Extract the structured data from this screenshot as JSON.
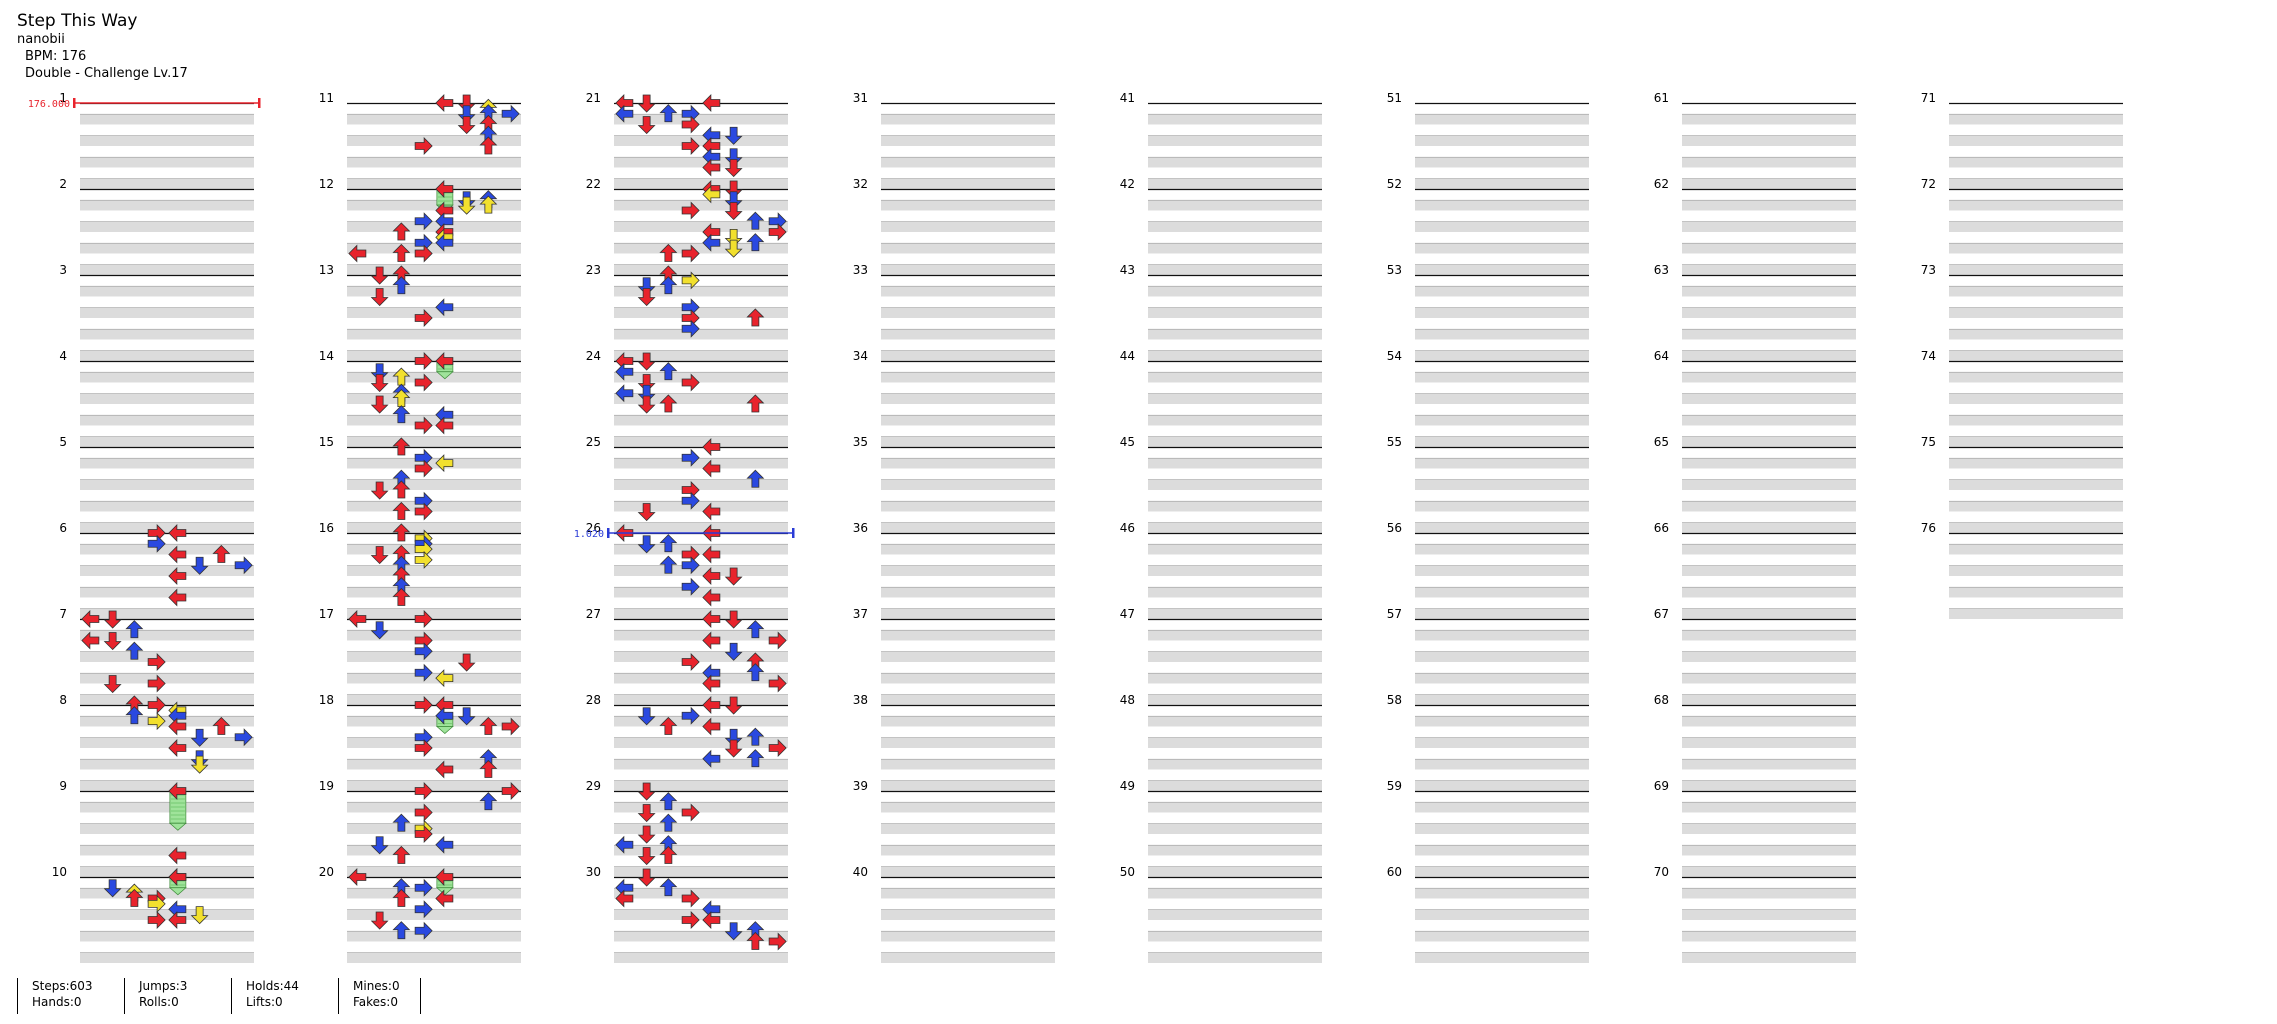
{
  "header": {
    "title": "Step This Way",
    "artist": "nanobii",
    "bpm": "BPM: 176",
    "difficulty": "Double - Challenge Lv.17"
  },
  "markers": {
    "bpm_change": {
      "label": "176.000",
      "measure": 1,
      "beat": 0,
      "color": "#e8232c"
    },
    "speed_change": {
      "label": "1.020",
      "measure": 26,
      "beat": 0,
      "color": "#2a3bd6"
    }
  },
  "measure_numbers": [
    "1",
    "2",
    "3",
    "4",
    "5",
    "6",
    "7",
    "8",
    "9",
    "10",
    "11",
    "12",
    "13",
    "14",
    "15",
    "16",
    "17",
    "18",
    "19",
    "20",
    "21",
    "22",
    "23",
    "24",
    "25",
    "26",
    "27",
    "28",
    "29",
    "30",
    "31",
    "32",
    "33",
    "34",
    "35",
    "36",
    "37",
    "38",
    "39",
    "40",
    "41",
    "42",
    "43",
    "44",
    "45",
    "46",
    "47",
    "48",
    "49",
    "50",
    "51",
    "52",
    "53",
    "54",
    "55",
    "56",
    "57",
    "58",
    "59",
    "60",
    "61",
    "62",
    "63",
    "64",
    "65",
    "66",
    "67",
    "68",
    "69",
    "70",
    "71",
    "72",
    "73",
    "74",
    "75",
    "76"
  ],
  "colors": {
    "quarter": "#e8232c",
    "eighth": "#2a49e0",
    "sixteenth": "#f2e02e",
    "hold_body": "#9fe39a",
    "stripe": "#dcdcdc"
  },
  "lanes": [
    "L1",
    "D1",
    "U1",
    "R1",
    "L2",
    "D2",
    "U2",
    "R2"
  ],
  "notes": [
    {
      "m": 6,
      "b": 0,
      "lane": 3
    },
    {
      "m": 6,
      "b": 0,
      "lane": 4
    },
    {
      "m": 6,
      "b": 0.5,
      "lane": 3
    },
    {
      "m": 6,
      "b": 1,
      "lane": 4
    },
    {
      "m": 6,
      "b": 1,
      "lane": 6
    },
    {
      "m": 6,
      "b": 1.5,
      "lane": 5
    },
    {
      "m": 6,
      "b": 1.5,
      "lane": 7
    },
    {
      "m": 6,
      "b": 2,
      "lane": 4
    },
    {
      "m": 6,
      "b": 3,
      "lane": 4
    },
    {
      "m": 7,
      "b": 0,
      "lane": 0
    },
    {
      "m": 7,
      "b": 0,
      "lane": 1
    },
    {
      "m": 7,
      "b": 0.5,
      "lane": 2
    },
    {
      "m": 7,
      "b": 1,
      "lane": 0
    },
    {
      "m": 7,
      "b": 1,
      "lane": 1
    },
    {
      "m": 7,
      "b": 1.5,
      "lane": 2
    },
    {
      "m": 7,
      "b": 2,
      "lane": 3
    },
    {
      "m": 7,
      "b": 3,
      "lane": 1
    },
    {
      "m": 7,
      "b": 3,
      "lane": 3
    },
    {
      "m": 8,
      "b": 0,
      "lane": 2
    },
    {
      "m": 8,
      "b": 0,
      "lane": 3
    },
    {
      "m": 8,
      "b": 0.25,
      "lane": 4
    },
    {
      "m": 8,
      "b": 0.5,
      "lane": 2
    },
    {
      "m": 8,
      "b": 0.5,
      "lane": 4
    },
    {
      "m": 8,
      "b": 0.75,
      "lane": 3
    },
    {
      "m": 8,
      "b": 1,
      "lane": 4
    },
    {
      "m": 8,
      "b": 1,
      "lane": 6
    },
    {
      "m": 8,
      "b": 1.5,
      "lane": 5
    },
    {
      "m": 8,
      "b": 1.5,
      "lane": 7
    },
    {
      "m": 8,
      "b": 2,
      "lane": 4
    },
    {
      "m": 8,
      "b": 2.5,
      "lane": 5
    },
    {
      "m": 8,
      "b": 2.75,
      "lane": 5
    },
    {
      "m": 9,
      "b": 0,
      "lane": 4,
      "hold": 1.5
    },
    {
      "m": 9,
      "b": 3,
      "lane": 4
    },
    {
      "m": 10,
      "b": 0,
      "lane": 4
    },
    {
      "m": 10,
      "b": 0,
      "lane": 4,
      "hold": 0.5
    },
    {
      "m": 10,
      "b": 0.5,
      "lane": 1
    },
    {
      "m": 10,
      "b": 0.75,
      "lane": 2
    },
    {
      "m": 10,
      "b": 1,
      "lane": 2
    },
    {
      "m": 10,
      "b": 1,
      "lane": 3
    },
    {
      "m": 10,
      "b": 1.25,
      "lane": 3
    },
    {
      "m": 10,
      "b": 1.5,
      "lane": 4
    },
    {
      "m": 10,
      "b": 1.75,
      "lane": 5
    },
    {
      "m": 10,
      "b": 2,
      "lane": 3
    },
    {
      "m": 10,
      "b": 2,
      "lane": 4
    },
    {
      "m": 11,
      "b": 0,
      "lane": 4
    },
    {
      "m": 11,
      "b": 0,
      "lane": 5
    },
    {
      "m": 11,
      "b": 0.25,
      "lane": 6
    },
    {
      "m": 11,
      "b": 0.5,
      "lane": 5
    },
    {
      "m": 11,
      "b": 0.5,
      "lane": 6
    },
    {
      "m": 11,
      "b": 0.5,
      "lane": 7
    },
    {
      "m": 11,
      "b": 1,
      "lane": 5
    },
    {
      "m": 11,
      "b": 1,
      "lane": 6
    },
    {
      "m": 11,
      "b": 1.5,
      "lane": 6
    },
    {
      "m": 11,
      "b": 2,
      "lane": 6
    },
    {
      "m": 11,
      "b": 2,
      "lane": 3
    },
    {
      "m": 12,
      "b": 0,
      "lane": 4,
      "hold": 0.75
    },
    {
      "m": 12,
      "b": 0.5,
      "lane": 5
    },
    {
      "m": 12,
      "b": 0.5,
      "lane": 6
    },
    {
      "m": 12,
      "b": 0.75,
      "lane": 5
    },
    {
      "m": 12,
      "b": 0.75,
      "lane": 6
    },
    {
      "m": 12,
      "b": 1,
      "lane": 4
    },
    {
      "m": 12,
      "b": 1.5,
      "lane": 3
    },
    {
      "m": 12,
      "b": 1.5,
      "lane": 4
    },
    {
      "m": 12,
      "b": 2,
      "lane": 2
    },
    {
      "m": 12,
      "b": 2,
      "lane": 4
    },
    {
      "m": 12,
      "b": 2.25,
      "lane": 4
    },
    {
      "m": 12,
      "b": 2.5,
      "lane": 3
    },
    {
      "m": 12,
      "b": 2.5,
      "lane": 4
    },
    {
      "m": 12,
      "b": 3,
      "lane": 0
    },
    {
      "m": 12,
      "b": 3,
      "lane": 2
    },
    {
      "m": 12,
      "b": 3,
      "lane": 3
    },
    {
      "m": 13,
      "b": 0,
      "lane": 1
    },
    {
      "m": 13,
      "b": 0,
      "lane": 2
    },
    {
      "m": 13,
      "b": 0.5,
      "lane": 2
    },
    {
      "m": 13,
      "b": 1,
      "lane": 1
    },
    {
      "m": 13,
      "b": 1.5,
      "lane": 4
    },
    {
      "m": 13,
      "b": 2,
      "lane": 3
    },
    {
      "m": 14,
      "b": 0,
      "lane": 3
    },
    {
      "m": 14,
      "b": 0,
      "lane": 4,
      "hold": 0.5
    },
    {
      "m": 14,
      "b": 0.5,
      "lane": 1
    },
    {
      "m": 14,
      "b": 0.75,
      "lane": 2
    },
    {
      "m": 14,
      "b": 1,
      "lane": 1
    },
    {
      "m": 14,
      "b": 1,
      "lane": 3
    },
    {
      "m": 14,
      "b": 1.5,
      "lane": 2
    },
    {
      "m": 14,
      "b": 1.75,
      "lane": 2
    },
    {
      "m": 14,
      "b": 2,
      "lane": 1
    },
    {
      "m": 14,
      "b": 2.5,
      "lane": 2
    },
    {
      "m": 14,
      "b": 2.5,
      "lane": 4
    },
    {
      "m": 14,
      "b": 3,
      "lane": 3
    },
    {
      "m": 14,
      "b": 3,
      "lane": 4
    },
    {
      "m": 15,
      "b": 0,
      "lane": 2
    },
    {
      "m": 15,
      "b": 0.5,
      "lane": 3
    },
    {
      "m": 15,
      "b": 0.75,
      "lane": 4
    },
    {
      "m": 15,
      "b": 1,
      "lane": 3
    },
    {
      "m": 15,
      "b": 1.5,
      "lane": 2
    },
    {
      "m": 15,
      "b": 2,
      "lane": 1
    },
    {
      "m": 15,
      "b": 2,
      "lane": 2
    },
    {
      "m": 15,
      "b": 2.5,
      "lane": 3
    },
    {
      "m": 15,
      "b": 3,
      "lane": 2
    },
    {
      "m": 15,
      "b": 3,
      "lane": 3
    },
    {
      "m": 16,
      "b": 0,
      "lane": 2
    },
    {
      "m": 16,
      "b": 0.25,
      "lane": 3
    },
    {
      "m": 16,
      "b": 0.5,
      "lane": 3
    },
    {
      "m": 16,
      "b": 0.75,
      "lane": 3
    },
    {
      "m": 16,
      "b": 1,
      "lane": 1
    },
    {
      "m": 16,
      "b": 1,
      "lane": 2
    },
    {
      "m": 16,
      "b": 1.25,
      "lane": 3
    },
    {
      "m": 16,
      "b": 1.5,
      "lane": 2
    },
    {
      "m": 16,
      "b": 2,
      "lane": 2
    },
    {
      "m": 16,
      "b": 2.5,
      "lane": 2
    },
    {
      "m": 16,
      "b": 3,
      "lane": 2
    },
    {
      "m": 17,
      "b": 0,
      "lane": 0
    },
    {
      "m": 17,
      "b": 0,
      "lane": 3
    },
    {
      "m": 17,
      "b": 0.5,
      "lane": 1
    },
    {
      "m": 17,
      "b": 1,
      "lane": 3
    },
    {
      "m": 17,
      "b": 1.5,
      "lane": 3
    },
    {
      "m": 17,
      "b": 2,
      "lane": 5
    },
    {
      "m": 17,
      "b": 2.5,
      "lane": 3
    },
    {
      "m": 17,
      "b": 2.75,
      "lane": 4
    },
    {
      "m": 18,
      "b": 0,
      "lane": 3
    },
    {
      "m": 18,
      "b": 0,
      "lane": 4
    },
    {
      "m": 18,
      "b": 0.5,
      "lane": 5
    },
    {
      "m": 18,
      "b": 0.5,
      "lane": 4,
      "hold": 0.5
    },
    {
      "m": 18,
      "b": 1,
      "lane": 6
    },
    {
      "m": 18,
      "b": 1,
      "lane": 7
    },
    {
      "m": 18,
      "b": 1.5,
      "lane": 3
    },
    {
      "m": 18,
      "b": 2,
      "lane": 3
    },
    {
      "m": 18,
      "b": 2.5,
      "lane": 6
    },
    {
      "m": 18,
      "b": 3,
      "lane": 4
    },
    {
      "m": 18,
      "b": 3,
      "lane": 6
    },
    {
      "m": 19,
      "b": 0,
      "lane": 3
    },
    {
      "m": 19,
      "b": 0,
      "lane": 7
    },
    {
      "m": 19,
      "b": 0.5,
      "lane": 6
    },
    {
      "m": 19,
      "b": 1,
      "lane": 3
    },
    {
      "m": 19,
      "b": 1.5,
      "lane": 2
    },
    {
      "m": 19,
      "b": 1.75,
      "lane": 3
    },
    {
      "m": 19,
      "b": 2,
      "lane": 3
    },
    {
      "m": 19,
      "b": 2.5,
      "lane": 1
    },
    {
      "m": 19,
      "b": 2.5,
      "lane": 4
    },
    {
      "m": 19,
      "b": 3,
      "lane": 2
    },
    {
      "m": 20,
      "b": 0,
      "lane": 0
    },
    {
      "m": 20,
      "b": 0,
      "lane": 4,
      "hold": 0.5
    },
    {
      "m": 20,
      "b": 0.5,
      "lane": 2
    },
    {
      "m": 20,
      "b": 0.5,
      "lane": 3
    },
    {
      "m": 20,
      "b": 1,
      "lane": 2
    },
    {
      "m": 20,
      "b": 1,
      "lane": 4
    },
    {
      "m": 20,
      "b": 1.5,
      "lane": 3
    },
    {
      "m": 20,
      "b": 2,
      "lane": 1
    },
    {
      "m": 20,
      "b": 2.5,
      "lane": 2
    },
    {
      "m": 20,
      "b": 2.5,
      "lane": 3
    },
    {
      "m": 21,
      "b": 0,
      "lane": 0
    },
    {
      "m": 21,
      "b": 0,
      "lane": 1
    },
    {
      "m": 21,
      "b": 0,
      "lane": 4
    },
    {
      "m": 21,
      "b": 0.5,
      "lane": 0
    },
    {
      "m": 21,
      "b": 0.5,
      "lane": 2
    },
    {
      "m": 21,
      "b": 0.5,
      "lane": 3
    },
    {
      "m": 21,
      "b": 1,
      "lane": 1
    },
    {
      "m": 21,
      "b": 1,
      "lane": 3
    },
    {
      "m": 21,
      "b": 1.5,
      "lane": 4
    },
    {
      "m": 21,
      "b": 1.5,
      "lane": 5
    },
    {
      "m": 21,
      "b": 2,
      "lane": 3
    },
    {
      "m": 21,
      "b": 2,
      "lane": 4
    },
    {
      "m": 21,
      "b": 2.5,
      "lane": 4
    },
    {
      "m": 21,
      "b": 2.5,
      "lane": 5
    },
    {
      "m": 21,
      "b": 3,
      "lane": 4
    },
    {
      "m": 21,
      "b": 3,
      "lane": 5
    },
    {
      "m": 22,
      "b": 0,
      "lane": 4
    },
    {
      "m": 22,
      "b": 0,
      "lane": 5
    },
    {
      "m": 22,
      "b": 0.25,
      "lane": 4
    },
    {
      "m": 22,
      "b": 0.5,
      "lane": 5
    },
    {
      "m": 22,
      "b": 1,
      "lane": 3
    },
    {
      "m": 22,
      "b": 1,
      "lane": 5
    },
    {
      "m": 22,
      "b": 1.5,
      "lane": 6
    },
    {
      "m": 22,
      "b": 1.5,
      "lane": 7
    },
    {
      "m": 22,
      "b": 2,
      "lane": 4
    },
    {
      "m": 22,
      "b": 2,
      "lane": 7
    },
    {
      "m": 22,
      "b": 2.25,
      "lane": 5
    },
    {
      "m": 22,
      "b": 2.5,
      "lane": 6
    },
    {
      "m": 22,
      "b": 2.5,
      "lane": 4
    },
    {
      "m": 22,
      "b": 2.75,
      "lane": 5
    },
    {
      "m": 22,
      "b": 3,
      "lane": 2
    },
    {
      "m": 22,
      "b": 3,
      "lane": 3
    },
    {
      "m": 23,
      "b": 0,
      "lane": 2
    },
    {
      "m": 23,
      "b": 0.25,
      "lane": 3
    },
    {
      "m": 23,
      "b": 0.5,
      "lane": 1
    },
    {
      "m": 23,
      "b": 0.5,
      "lane": 2
    },
    {
      "m": 23,
      "b": 1,
      "lane": 1
    },
    {
      "m": 23,
      "b": 1.5,
      "lane": 3
    },
    {
      "m": 23,
      "b": 2,
      "lane": 3
    },
    {
      "m": 23,
      "b": 2,
      "lane": 6
    },
    {
      "m": 23,
      "b": 2.5,
      "lane": 3
    },
    {
      "m": 24,
      "b": 0,
      "lane": 0
    },
    {
      "m": 24,
      "b": 0,
      "lane": 1
    },
    {
      "m": 24,
      "b": 0.5,
      "lane": 0
    },
    {
      "m": 24,
      "b": 0.5,
      "lane": 2
    },
    {
      "m": 24,
      "b": 1,
      "lane": 1
    },
    {
      "m": 24,
      "b": 1,
      "lane": 3
    },
    {
      "m": 24,
      "b": 1.5,
      "lane": 0
    },
    {
      "m": 24,
      "b": 1.5,
      "lane": 1
    },
    {
      "m": 24,
      "b": 2,
      "lane": 1
    },
    {
      "m": 24,
      "b": 2,
      "lane": 2
    },
    {
      "m": 24,
      "b": 2,
      "lane": 6
    },
    {
      "m": 25,
      "b": 0,
      "lane": 4
    },
    {
      "m": 25,
      "b": 0.5,
      "lane": 3
    },
    {
      "m": 25,
      "b": 1,
      "lane": 4
    },
    {
      "m": 25,
      "b": 1.5,
      "lane": 6
    },
    {
      "m": 25,
      "b": 2,
      "lane": 3
    },
    {
      "m": 25,
      "b": 2.5,
      "lane": 3
    },
    {
      "m": 25,
      "b": 3,
      "lane": 1
    },
    {
      "m": 25,
      "b": 3,
      "lane": 4
    },
    {
      "m": 26,
      "b": 0,
      "lane": 0
    },
    {
      "m": 26,
      "b": 0,
      "lane": 4
    },
    {
      "m": 26,
      "b": 0.5,
      "lane": 1
    },
    {
      "m": 26,
      "b": 0.5,
      "lane": 2
    },
    {
      "m": 26,
      "b": 1,
      "lane": 3
    },
    {
      "m": 26,
      "b": 1,
      "lane": 4
    },
    {
      "m": 26,
      "b": 1.5,
      "lane": 2
    },
    {
      "m": 26,
      "b": 1.5,
      "lane": 3
    },
    {
      "m": 26,
      "b": 2,
      "lane": 4
    },
    {
      "m": 26,
      "b": 2,
      "lane": 5
    },
    {
      "m": 26,
      "b": 2.5,
      "lane": 3
    },
    {
      "m": 26,
      "b": 3,
      "lane": 4
    },
    {
      "m": 27,
      "b": 0,
      "lane": 4
    },
    {
      "m": 27,
      "b": 0,
      "lane": 5
    },
    {
      "m": 27,
      "b": 0.5,
      "lane": 6
    },
    {
      "m": 27,
      "b": 1,
      "lane": 4
    },
    {
      "m": 27,
      "b": 1,
      "lane": 7
    },
    {
      "m": 27,
      "b": 1.5,
      "lane": 5
    },
    {
      "m": 27,
      "b": 2,
      "lane": 3
    },
    {
      "m": 27,
      "b": 2,
      "lane": 6
    },
    {
      "m": 27,
      "b": 2.5,
      "lane": 4
    },
    {
      "m": 27,
      "b": 2.5,
      "lane": 6
    },
    {
      "m": 27,
      "b": 3,
      "lane": 4
    },
    {
      "m": 27,
      "b": 3,
      "lane": 7
    },
    {
      "m": 28,
      "b": 0,
      "lane": 4
    },
    {
      "m": 28,
      "b": 0,
      "lane": 5
    },
    {
      "m": 28,
      "b": 0.5,
      "lane": 1
    },
    {
      "m": 28,
      "b": 0.5,
      "lane": 3
    },
    {
      "m": 28,
      "b": 1,
      "lane": 2
    },
    {
      "m": 28,
      "b": 1,
      "lane": 4
    },
    {
      "m": 28,
      "b": 1.5,
      "lane": 5
    },
    {
      "m": 28,
      "b": 1.5,
      "lane": 6
    },
    {
      "m": 28,
      "b": 2,
      "lane": 7
    },
    {
      "m": 28,
      "b": 2,
      "lane": 5
    },
    {
      "m": 28,
      "b": 2.5,
      "lane": 4
    },
    {
      "m": 28,
      "b": 2.5,
      "lane": 6
    },
    {
      "m": 29,
      "b": 0,
      "lane": 1
    },
    {
      "m": 29,
      "b": 0.5,
      "lane": 2
    },
    {
      "m": 29,
      "b": 1,
      "lane": 1
    },
    {
      "m": 29,
      "b": 1,
      "lane": 3
    },
    {
      "m": 29,
      "b": 1.5,
      "lane": 2
    },
    {
      "m": 29,
      "b": 2,
      "lane": 1
    },
    {
      "m": 29,
      "b": 2.5,
      "lane": 0
    },
    {
      "m": 29,
      "b": 2.5,
      "lane": 2
    },
    {
      "m": 29,
      "b": 3,
      "lane": 1
    },
    {
      "m": 29,
      "b": 3,
      "lane": 2
    },
    {
      "m": 30,
      "b": 0,
      "lane": 1
    },
    {
      "m": 30,
      "b": 0.5,
      "lane": 0
    },
    {
      "m": 30,
      "b": 0.5,
      "lane": 2
    },
    {
      "m": 30,
      "b": 1,
      "lane": 0
    },
    {
      "m": 30,
      "b": 1,
      "lane": 3
    },
    {
      "m": 30,
      "b": 1.5,
      "lane": 4
    },
    {
      "m": 30,
      "b": 2,
      "lane": 3
    },
    {
      "m": 30,
      "b": 2,
      "lane": 4
    },
    {
      "m": 30,
      "b": 2.5,
      "lane": 6
    },
    {
      "m": 30,
      "b": 2.5,
      "lane": 5
    },
    {
      "m": 30,
      "b": 3,
      "lane": 6
    },
    {
      "m": 30,
      "b": 3,
      "lane": 7
    }
  ],
  "stats": {
    "steps": "Steps:603",
    "hands": "Hands:0",
    "jumps": "Jumps:3",
    "rolls": "Rolls:0",
    "holds": "Holds:44",
    "lifts": "Lifts:0",
    "mines": "Mines:0",
    "fakes": "Fakes:0"
  }
}
